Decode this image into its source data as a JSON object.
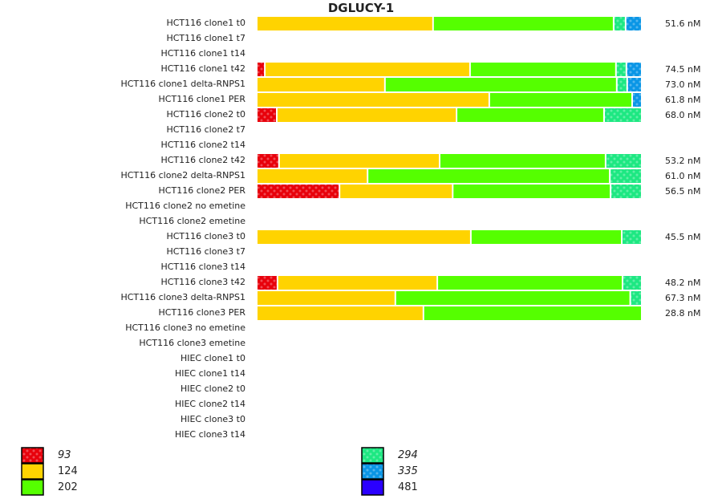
{
  "chart_data": {
    "type": "bar",
    "orientation": "horizontal",
    "stacked": true,
    "title": "DGLUCY-1",
    "unit": "%",
    "xlim": [
      0,
      100
    ],
    "grid": false,
    "legend_placement": "bottom",
    "legend": [
      {
        "name": "93",
        "color": "#e8000b",
        "patterned": true
      },
      {
        "name": "124",
        "color": "#ffd300",
        "patterned": false
      },
      {
        "name": "202",
        "color": "#55ff00",
        "patterned": false
      },
      {
        "name": "294",
        "color": "#1de882",
        "patterned": true
      },
      {
        "name": "335",
        "color": "#0a96e6",
        "patterned": true
      },
      {
        "name": "481",
        "color": "#2a00ff",
        "patterned": false
      }
    ],
    "categories": [
      "HCT116 clone1 t0",
      "HCT116 clone1 t7",
      "HCT116 clone1 t14",
      "HCT116 clone1 t42",
      "HCT116 clone1 delta-RNPS1",
      "HCT116 clone1 PER",
      "HCT116 clone2 t0",
      "HCT116 clone2 t7",
      "HCT116 clone2 t14",
      "HCT116 clone2 t42",
      "HCT116 clone2 delta-RNPS1",
      "HCT116 clone2 PER",
      "HCT116 clone2 no emetine",
      "HCT116 clone2 emetine",
      "HCT116 clone3 t0",
      "HCT116 clone3 t7",
      "HCT116 clone3 t14",
      "HCT116 clone3 t42",
      "HCT116 clone3 delta-RNPS1",
      "HCT116 clone3 PER",
      "HCT116 clone3 no emetine",
      "HCT116 clone3 emetine",
      "HIEC clone1 t0",
      "HIEC clone1 t14",
      "HIEC clone2 t0",
      "HIEC clone2 t14",
      "HIEC clone3 t0",
      "HIEC clone3 t14"
    ],
    "totals": [
      "51.6 nM",
      "",
      "",
      "74.5 nM",
      "73.0 nM",
      "61.8 nM",
      "68.0 nM",
      "",
      "",
      "53.2 nM",
      "61.0 nM",
      "56.5 nM",
      "",
      "",
      "45.5 nM",
      "",
      "",
      "48.2 nM",
      "67.3 nM",
      "28.8 nM",
      "",
      "",
      "",
      "",
      "",
      "",
      "",
      ""
    ],
    "series": [
      {
        "name": "93",
        "values": [
          0,
          0,
          0,
          2.1,
          0,
          0,
          5.2,
          0,
          0,
          5.8,
          0,
          21.5,
          0,
          0,
          0,
          0,
          0,
          5.4,
          0,
          0,
          0,
          0,
          0,
          0,
          0,
          0,
          0,
          0
        ]
      },
      {
        "name": "124",
        "values": [
          45.8,
          0,
          0,
          53.3,
          33.3,
          60.4,
          46.7,
          0,
          0,
          41.7,
          28.8,
          29.4,
          0,
          0,
          55.6,
          0,
          0,
          41.5,
          36.0,
          43.3,
          0,
          0,
          0,
          0,
          0,
          0,
          0,
          0
        ]
      },
      {
        "name": "202",
        "values": [
          46.9,
          0,
          0,
          37.9,
          60.2,
          37.1,
          38.3,
          0,
          0,
          43.1,
          62.9,
          41.0,
          0,
          0,
          39.2,
          0,
          0,
          48.1,
          61.0,
          56.7,
          0,
          0,
          0,
          0,
          0,
          0,
          0,
          0
        ]
      },
      {
        "name": "294",
        "values": [
          3.1,
          0,
          0,
          2.7,
          2.7,
          0,
          9.8,
          0,
          0,
          9.4,
          8.3,
          8.1,
          0,
          0,
          5.2,
          0,
          0,
          5.0,
          3.0,
          0,
          0,
          0,
          0,
          0,
          0,
          0,
          0,
          0
        ]
      },
      {
        "name": "335",
        "values": [
          4.2,
          0,
          0,
          4.0,
          3.8,
          2.5,
          0,
          0,
          0,
          0,
          0,
          0,
          0,
          0,
          0,
          0,
          0,
          0,
          0,
          0,
          0,
          0,
          0,
          0,
          0,
          0,
          0,
          0
        ]
      },
      {
        "name": "481",
        "values": [
          0,
          0,
          0,
          0,
          0,
          0,
          0,
          0,
          0,
          0,
          0,
          0,
          0,
          0,
          0,
          0,
          0,
          0,
          0,
          0,
          0,
          0,
          0,
          0,
          0,
          0,
          0,
          0
        ]
      }
    ]
  }
}
